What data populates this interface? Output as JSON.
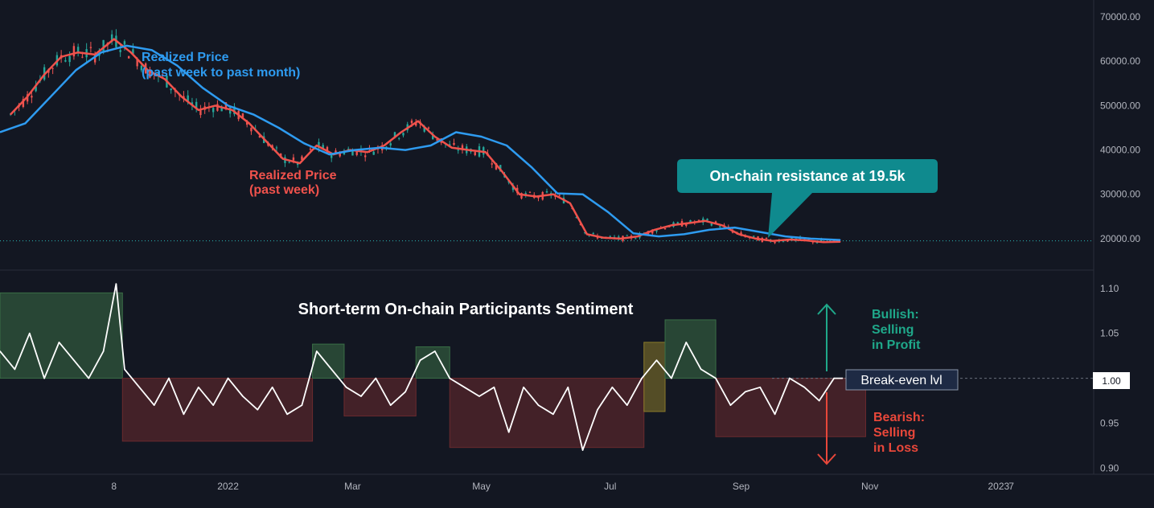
{
  "chart_data": [
    {
      "type": "line",
      "panel": "price",
      "y_ticks": [
        "70000.00",
        "60000.00",
        "50000.00",
        "40000.00",
        "30000.00",
        "20000.00"
      ],
      "ylim": [
        14000,
        72000
      ],
      "x_ticks": [
        "8",
        "2022",
        "Mar",
        "May",
        "Jul",
        "Sep",
        "Nov",
        "2023",
        "7"
      ],
      "x_tick_dates": [
        "2021-11-08",
        "2022-01-01",
        "2022-03-01",
        "2022-05-01",
        "2022-07-01",
        "2022-09-01",
        "2022-11-01",
        "2023-01-01",
        "2023-01-07"
      ],
      "xlim": [
        "2021-09-15",
        "2023-02-15"
      ],
      "grid": false,
      "reference_line": {
        "y": 19500,
        "style": "dotted"
      },
      "series": [
        {
          "name": "Realized Price (past week)",
          "color": "#F0524C",
          "x": [
            "2021-09-20",
            "2021-09-28",
            "2021-10-06",
            "2021-10-14",
            "2021-10-22",
            "2021-10-30",
            "2021-11-08",
            "2021-11-16",
            "2021-11-24",
            "2021-12-02",
            "2021-12-10",
            "2021-12-18",
            "2021-12-26",
            "2022-01-03",
            "2022-01-11",
            "2022-01-19",
            "2022-01-27",
            "2022-02-04",
            "2022-02-12",
            "2022-02-20",
            "2022-02-28",
            "2022-03-08",
            "2022-03-16",
            "2022-03-24",
            "2022-04-01",
            "2022-04-09",
            "2022-04-17",
            "2022-04-25",
            "2022-05-03",
            "2022-05-11",
            "2022-05-19",
            "2022-05-27",
            "2022-06-04",
            "2022-06-12",
            "2022-06-20",
            "2022-06-28",
            "2022-07-06",
            "2022-07-14",
            "2022-07-22",
            "2022-07-30",
            "2022-08-07",
            "2022-08-15",
            "2022-08-23",
            "2022-08-31",
            "2022-09-08",
            "2022-09-16",
            "2022-09-24",
            "2022-10-02",
            "2022-10-10",
            "2022-10-18"
          ],
          "y": [
            48000,
            52000,
            57000,
            61000,
            62000,
            61500,
            65000,
            62000,
            58000,
            56000,
            52000,
            49000,
            50000,
            49000,
            46000,
            42000,
            38000,
            37000,
            41000,
            39000,
            40000,
            39500,
            41000,
            44000,
            46500,
            43000,
            40500,
            40000,
            39500,
            35000,
            30000,
            29500,
            30000,
            28000,
            21000,
            20200,
            20000,
            20500,
            22000,
            23000,
            23500,
            24000,
            23000,
            21000,
            20000,
            19500,
            19800,
            19600,
            19200,
            19300
          ]
        },
        {
          "name": "Realized Price (past week to past month)",
          "color": "#2E9BF0",
          "x": [
            "2021-09-15",
            "2021-09-27",
            "2021-10-09",
            "2021-10-21",
            "2021-11-02",
            "2021-11-14",
            "2021-11-26",
            "2021-12-08",
            "2021-12-20",
            "2022-01-01",
            "2022-01-13",
            "2022-01-25",
            "2022-02-06",
            "2022-02-18",
            "2022-03-02",
            "2022-03-14",
            "2022-03-26",
            "2022-04-07",
            "2022-04-19",
            "2022-05-01",
            "2022-05-13",
            "2022-05-25",
            "2022-06-06",
            "2022-06-18",
            "2022-06-30",
            "2022-07-12",
            "2022-07-24",
            "2022-08-05",
            "2022-08-17",
            "2022-08-29",
            "2022-09-10",
            "2022-09-22",
            "2022-10-04",
            "2022-10-18"
          ],
          "y": [
            44000,
            46000,
            52000,
            58000,
            62000,
            63500,
            62500,
            59000,
            54000,
            50000,
            48000,
            45000,
            41500,
            39000,
            40000,
            40500,
            40000,
            41000,
            44000,
            43000,
            41000,
            36000,
            30200,
            30000,
            26000,
            21200,
            20500,
            21000,
            22000,
            22500,
            21500,
            20500,
            20000,
            19700
          ]
        }
      ],
      "annotations": [
        {
          "text": "Realized Price (past week to past month)"
        },
        {
          "text": "Realized Price (past week)"
        },
        {
          "text": "On-chain resistance at 19.5k"
        }
      ]
    },
    {
      "type": "line",
      "panel": "sentiment",
      "title": "Short-term On-chain Participants Sentiment",
      "y_ticks": [
        "1.10",
        "1.05",
        "1.00",
        "0.95",
        "0.90"
      ],
      "ylim": [
        0.895,
        1.115
      ],
      "current_value": "1.00",
      "reference_line": {
        "y": 1.0,
        "style": "dashed",
        "label": "Break-even lvl"
      },
      "series": [
        {
          "name": "Sentiment",
          "color": "#FFFFFF",
          "x": [
            "2021-09-15",
            "2021-09-22",
            "2021-09-29",
            "2021-10-06",
            "2021-10-13",
            "2021-10-20",
            "2021-10-27",
            "2021-11-03",
            "2021-11-09",
            "2021-11-13",
            "2021-11-20",
            "2021-11-27",
            "2021-12-04",
            "2021-12-11",
            "2021-12-18",
            "2021-12-25",
            "2022-01-01",
            "2022-01-08",
            "2022-01-15",
            "2022-01-22",
            "2022-01-29",
            "2022-02-05",
            "2022-02-12",
            "2022-02-19",
            "2022-02-26",
            "2022-03-05",
            "2022-03-12",
            "2022-03-19",
            "2022-03-26",
            "2022-04-02",
            "2022-04-09",
            "2022-04-16",
            "2022-04-23",
            "2022-04-30",
            "2022-05-07",
            "2022-05-14",
            "2022-05-21",
            "2022-05-28",
            "2022-06-04",
            "2022-06-11",
            "2022-06-18",
            "2022-06-25",
            "2022-07-02",
            "2022-07-09",
            "2022-07-16",
            "2022-07-23",
            "2022-07-30",
            "2022-08-06",
            "2022-08-13",
            "2022-08-20",
            "2022-08-27",
            "2022-09-03",
            "2022-09-10",
            "2022-09-17",
            "2022-09-24",
            "2022-10-01",
            "2022-10-08",
            "2022-10-15",
            "2022-10-19"
          ],
          "y": [
            1.03,
            1.01,
            1.05,
            1.0,
            1.04,
            1.02,
            1.0,
            1.03,
            1.105,
            1.01,
            0.99,
            0.97,
            1.0,
            0.96,
            0.99,
            0.97,
            1.0,
            0.98,
            0.965,
            0.99,
            0.96,
            0.97,
            1.03,
            1.01,
            0.99,
            0.98,
            1.0,
            0.97,
            0.985,
            1.02,
            1.03,
            1.0,
            0.99,
            0.98,
            0.99,
            0.94,
            0.99,
            0.97,
            0.96,
            0.99,
            0.92,
            0.965,
            0.99,
            0.97,
            1.0,
            1.02,
            1.0,
            1.04,
            1.01,
            1.0,
            0.97,
            0.985,
            0.99,
            0.96,
            1.0,
            0.99,
            0.975,
            1.0,
            1.0
          ]
        }
      ],
      "zones": [
        {
          "label": "Bullish",
          "from": "2021-09-15",
          "to": "2021-11-12",
          "high": 1.095,
          "low": 1.0,
          "color": "#3A6E46"
        },
        {
          "label": "Bearish",
          "from": "2021-11-12",
          "to": "2022-02-10",
          "high": 1.0,
          "low": 0.93,
          "color": "#6B2A2E"
        },
        {
          "label": "Bullish",
          "from": "2022-02-10",
          "to": "2022-02-25",
          "high": 1.038,
          "low": 1.0,
          "color": "#3A6E46"
        },
        {
          "label": "Bearish",
          "from": "2022-02-25",
          "to": "2022-03-31",
          "high": 1.0,
          "low": 0.958,
          "color": "#6B2A2E"
        },
        {
          "label": "Bullish",
          "from": "2022-03-31",
          "to": "2022-04-16",
          "high": 1.035,
          "low": 1.0,
          "color": "#3A6E46"
        },
        {
          "label": "Bearish",
          "from": "2022-04-16",
          "to": "2022-07-17",
          "high": 1.0,
          "low": 0.923,
          "color": "#6B2A2E"
        },
        {
          "label": "Neutral",
          "from": "2022-07-17",
          "to": "2022-07-27",
          "high": 1.04,
          "low": 0.963,
          "color": "#8A7A2A"
        },
        {
          "label": "Bullish",
          "from": "2022-07-27",
          "to": "2022-08-20",
          "high": 1.065,
          "low": 1.0,
          "color": "#3A6E46"
        },
        {
          "label": "Bearish",
          "from": "2022-08-20",
          "to": "2022-10-30",
          "high": 1.0,
          "low": 0.935,
          "color": "#6B2A2E"
        }
      ],
      "legend": {
        "bullish": [
          "Bullish:",
          "Selling",
          "in Profit"
        ],
        "bearish": [
          "Bearish:",
          "Selling",
          "in Loss"
        ]
      }
    }
  ],
  "colors": {
    "background": "#131722",
    "axis_text": "#B2B5BE",
    "red": "#F0524C",
    "blue": "#2E9BF0",
    "teal": "#0F8A8E",
    "bull_text": "#1FA88A",
    "bear_text": "#E8473A",
    "break_even_box": "#1E2A44"
  }
}
